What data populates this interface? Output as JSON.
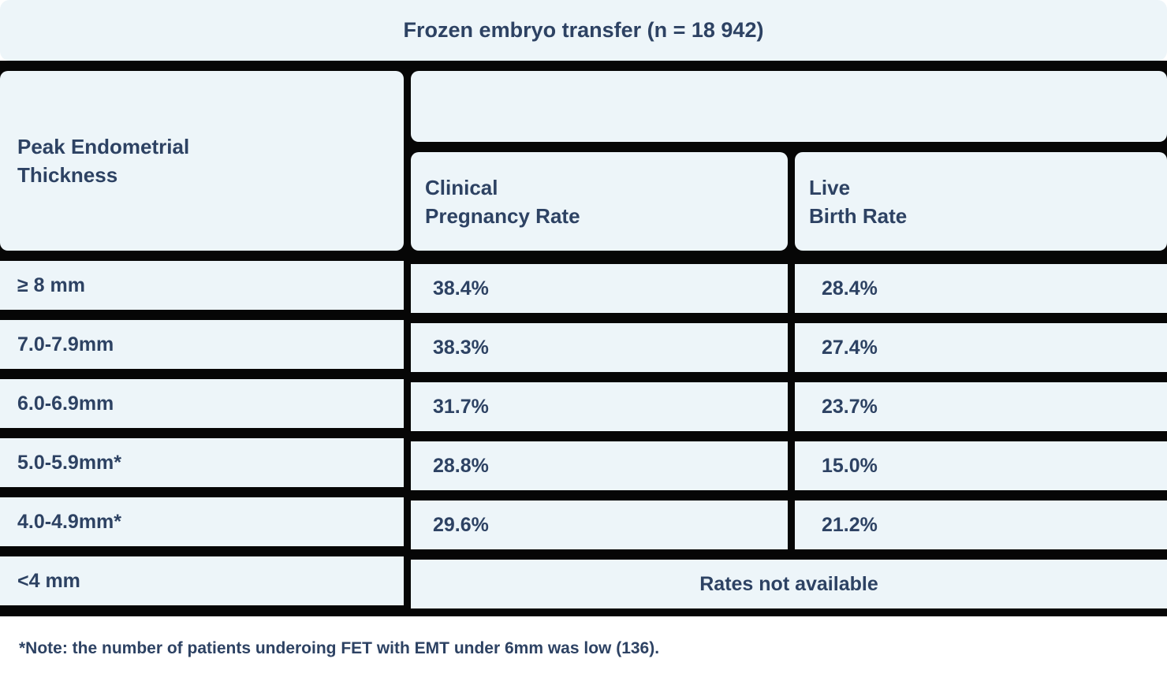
{
  "title": "Frozen embryo transfer (n = 18 942)",
  "headers": {
    "row_header_line1": "Peak Endometrial",
    "row_header_line2": "Thickness",
    "col1_line1": "Clinical",
    "col1_line2": "Pregnancy Rate",
    "col2_line1": "Live",
    "col2_line2": "Birth Rate"
  },
  "rows": [
    {
      "thickness": "≥ 8 mm",
      "cpr": "38.4%",
      "lbr": "28.4%"
    },
    {
      "thickness": "7.0-7.9mm",
      "cpr": "38.3%",
      "lbr": "27.4%"
    },
    {
      "thickness": "6.0-6.9mm",
      "cpr": "31.7%",
      "lbr": "23.7%"
    },
    {
      "thickness": "5.0-5.9mm*",
      "cpr": "28.8%",
      "lbr": "15.0%"
    },
    {
      "thickness": "4.0-4.9mm*",
      "cpr": "29.6%",
      "lbr": "21.2%"
    },
    {
      "thickness": "<4 mm",
      "merged": "Rates not available"
    }
  ],
  "footnote": "*Note: the number of patients underoing FET with EMT under 6mm was low (136).",
  "colors": {
    "cell_bg": "#edf5f9",
    "gap_bg": "#060606",
    "text": "#2d4263",
    "footnote_bg": "#ffffff"
  },
  "chart_data": {
    "type": "table",
    "title": "Frozen embryo transfer (n = 18 942)",
    "columns": [
      "Peak Endometrial Thickness",
      "Clinical Pregnancy Rate",
      "Live Birth Rate"
    ],
    "rows": [
      [
        "≥ 8 mm",
        "38.4%",
        "28.4%"
      ],
      [
        "7.0-7.9mm",
        "38.3%",
        "27.4%"
      ],
      [
        "6.0-6.9mm",
        "31.7%",
        "23.7%"
      ],
      [
        "5.0-5.9mm*",
        "28.8%",
        "15.0%"
      ],
      [
        "4.0-4.9mm*",
        "29.6%",
        "21.2%"
      ],
      [
        "<4 mm",
        "Rates not available",
        "Rates not available"
      ]
    ],
    "footnote": "*Note: the number of patients underoing FET with EMT under 6mm was low (136)."
  }
}
